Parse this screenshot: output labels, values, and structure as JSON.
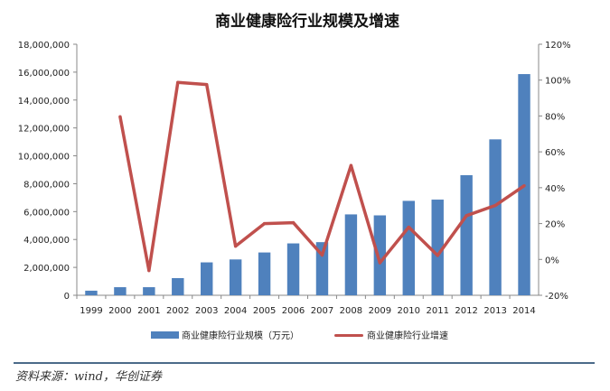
{
  "chart_data": {
    "type": "bar+line",
    "title": "商业健康险行业规模及增速",
    "categories": [
      "1999",
      "2000",
      "2001",
      "2002",
      "2003",
      "2004",
      "2005",
      "2006",
      "2007",
      "2008",
      "2009",
      "2010",
      "2011",
      "2012",
      "2013",
      "2014"
    ],
    "series": [
      {
        "name": "商业健康险行业规模（万元）",
        "type": "bar",
        "axis": "left",
        "color": "#4f81bd",
        "values": [
          330000,
          580000,
          580000,
          1230000,
          2360000,
          2570000,
          3070000,
          3720000,
          3810000,
          5800000,
          5730000,
          6770000,
          6860000,
          8610000,
          11180000,
          15860000
        ]
      },
      {
        "name": "商业健康险行业增速",
        "type": "line",
        "axis": "right",
        "color": "#c0504d",
        "values": [
          null,
          79.6,
          -6.2,
          98.7,
          97.5,
          7.4,
          20.0,
          20.5,
          2.4,
          52.4,
          -1.9,
          18.0,
          2.2,
          24.4,
          30.1,
          41.1
        ]
      }
    ],
    "left_axis": {
      "ylim": [
        0,
        18000000
      ],
      "ticks": [
        "0",
        "2,000,000",
        "4,000,000",
        "6,000,000",
        "8,000,000",
        "10,000,000",
        "12,000,000",
        "14,000,000",
        "16,000,000",
        "18,000,000"
      ]
    },
    "right_axis": {
      "ylim": [
        -20,
        120
      ],
      "ticks": [
        "-20%",
        "0%",
        "20%",
        "40%",
        "60%",
        "80%",
        "100%",
        "120%"
      ]
    },
    "grid": false,
    "legend": "bottom"
  },
  "source": "资料来源：wind，华创证券"
}
